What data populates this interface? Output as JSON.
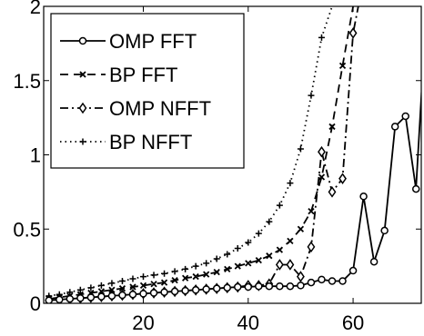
{
  "chart_data": {
    "type": "line",
    "title": "",
    "xlabel": "",
    "ylabel": "",
    "xlim": [
      1,
      73
    ],
    "ylim": [
      0,
      2
    ],
    "xticks": [
      20,
      40,
      60
    ],
    "yticks": [
      0,
      0.5,
      1,
      1.5,
      2
    ],
    "ytick_labels": [
      "0",
      "0.5",
      "1",
      "1.5",
      "2"
    ],
    "grid": false,
    "legend_position": "top-left",
    "series": [
      {
        "name": "OMP FFT",
        "color": "#000000",
        "marker": "circle",
        "line": "solid",
        "x": [
          2,
          4,
          6,
          8,
          10,
          12,
          14,
          16,
          18,
          20,
          22,
          24,
          26,
          28,
          30,
          32,
          34,
          36,
          38,
          40,
          42,
          44,
          46,
          48,
          50,
          52,
          54,
          56,
          58,
          60,
          62,
          64,
          66,
          68,
          70,
          72,
          74
        ],
        "y": [
          0.02,
          0.025,
          0.03,
          0.035,
          0.04,
          0.045,
          0.05,
          0.055,
          0.06,
          0.065,
          0.07,
          0.075,
          0.08,
          0.085,
          0.09,
          0.095,
          0.1,
          0.105,
          0.11,
          0.11,
          0.115,
          0.115,
          0.115,
          0.115,
          0.12,
          0.14,
          0.16,
          0.15,
          0.15,
          0.22,
          0.72,
          0.28,
          0.49,
          1.19,
          1.26,
          0.77,
          2.0
        ]
      },
      {
        "name": "BP FFT",
        "color": "#000000",
        "marker": "x",
        "line": "dashed",
        "x": [
          2,
          4,
          6,
          8,
          10,
          12,
          14,
          16,
          18,
          20,
          22,
          24,
          26,
          28,
          30,
          32,
          34,
          36,
          38,
          40,
          42,
          44,
          46,
          48,
          50,
          52,
          54,
          56,
          58,
          60
        ],
        "y": [
          0.03,
          0.04,
          0.05,
          0.06,
          0.07,
          0.08,
          0.09,
          0.1,
          0.11,
          0.12,
          0.13,
          0.14,
          0.155,
          0.17,
          0.18,
          0.195,
          0.21,
          0.23,
          0.25,
          0.27,
          0.29,
          0.32,
          0.36,
          0.42,
          0.5,
          0.62,
          0.85,
          1.19,
          1.6,
          2.0
        ]
      },
      {
        "name": "OMP NFFT",
        "color": "#000000",
        "marker": "diamond",
        "line": "dashdot",
        "x": [
          2,
          4,
          6,
          8,
          10,
          12,
          14,
          16,
          18,
          20,
          22,
          24,
          26,
          28,
          30,
          32,
          34,
          36,
          38,
          40,
          42,
          44,
          46,
          48,
          50,
          52,
          54,
          56,
          58,
          60,
          61
        ],
        "y": [
          0.02,
          0.025,
          0.03,
          0.035,
          0.04,
          0.045,
          0.05,
          0.055,
          0.06,
          0.065,
          0.07,
          0.075,
          0.08,
          0.085,
          0.09,
          0.095,
          0.1,
          0.105,
          0.11,
          0.12,
          0.12,
          0.13,
          0.26,
          0.26,
          0.18,
          0.38,
          1.02,
          0.75,
          0.84,
          1.82,
          2.0
        ]
      },
      {
        "name": "BP NFFT",
        "color": "#000000",
        "marker": "plus",
        "line": "dotted",
        "x": [
          2,
          4,
          6,
          8,
          10,
          12,
          14,
          16,
          18,
          20,
          22,
          24,
          26,
          28,
          30,
          32,
          34,
          36,
          38,
          40,
          42,
          44,
          46,
          48,
          50,
          52,
          54,
          56
        ],
        "y": [
          0.05,
          0.06,
          0.075,
          0.09,
          0.105,
          0.12,
          0.135,
          0.15,
          0.165,
          0.18,
          0.19,
          0.2,
          0.215,
          0.23,
          0.25,
          0.27,
          0.3,
          0.33,
          0.37,
          0.41,
          0.47,
          0.55,
          0.66,
          0.81,
          1.04,
          1.4,
          1.79,
          2.0
        ]
      }
    ]
  }
}
